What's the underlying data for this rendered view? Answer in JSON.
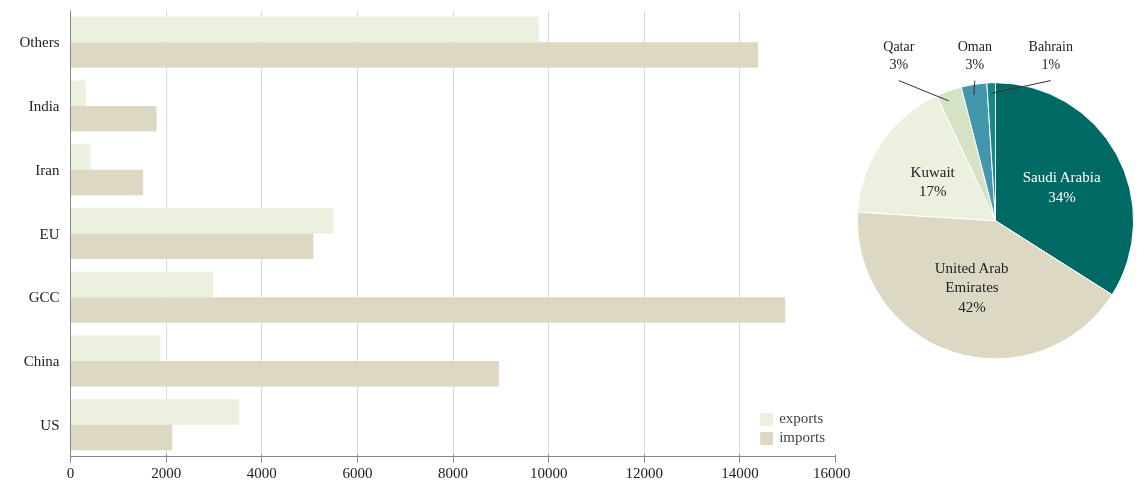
{
  "chart_data": [
    {
      "type": "bar",
      "orientation": "horizontal",
      "categories": [
        "Others",
        "India",
        "Iran",
        "EU",
        "GCC",
        "China",
        "US"
      ],
      "series": [
        {
          "name": "exports",
          "color": "#ebf0df",
          "values": [
            9800,
            320,
            420,
            5500,
            2980,
            1880,
            3530
          ]
        },
        {
          "name": "imports",
          "color": "#ddd8c3",
          "values": [
            14380,
            1800,
            1520,
            5080,
            14950,
            8960,
            2130
          ]
        }
      ],
      "xlim": [
        0,
        16000
      ],
      "xticks": [
        0,
        2000,
        4000,
        6000,
        8000,
        10000,
        12000,
        14000,
        16000
      ],
      "grid": "x",
      "legend": "bottom right"
    },
    {
      "type": "pie",
      "categories": [
        "Saudi Arabia",
        "United Arab Emirates",
        "Kuwait",
        "Qatar",
        "Oman",
        "Bahrain"
      ],
      "values": [
        34,
        42,
        17,
        3,
        3,
        1
      ],
      "colors": [
        "#006963",
        "#ddd8c3",
        "#ebf0df",
        "#d6e2c4",
        "#4496ad",
        "#138a87"
      ],
      "value_labels": [
        "34%",
        "42%",
        "17%",
        "3%",
        "3%",
        "1%"
      ]
    }
  ]
}
